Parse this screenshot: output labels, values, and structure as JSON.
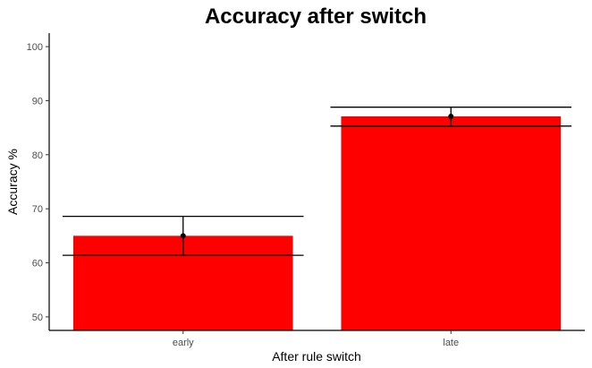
{
  "chart_data": {
    "type": "bar",
    "title": "Accuracy after switch",
    "xlabel": "After rule switch",
    "ylabel": "Accuracy %",
    "categories": [
      "early",
      "late"
    ],
    "values": [
      65,
      87.1
    ],
    "error_low": [
      61.4,
      85.3
    ],
    "error_high": [
      68.6,
      88.8
    ],
    "bar_color": "#ff0000",
    "point_color": "#000000",
    "ylim": [
      47.5,
      102.5
    ],
    "yticks": [
      50,
      60,
      70,
      80,
      90,
      100
    ],
    "grid": false,
    "legend": "none"
  }
}
